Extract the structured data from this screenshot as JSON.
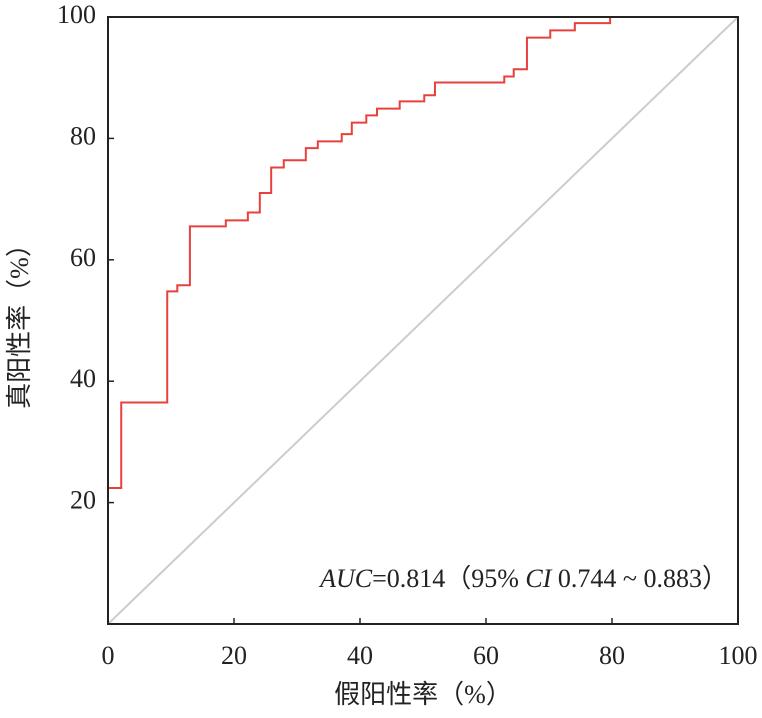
{
  "chart_data": {
    "type": "line",
    "xlabel": "假阳性率（%）",
    "ylabel": "真阳性率（%）",
    "annotation": [
      "AUC",
      "=0.814（95% ",
      "CI",
      " 0.744 ~ 0.883）"
    ],
    "x": [
      0,
      0,
      2.1,
      2.1,
      9.4,
      9.4,
      11,
      11,
      13,
      13,
      18.7,
      18.7,
      22.2,
      22.2,
      24.1,
      24.1,
      25.9,
      25.9,
      27.9,
      27.9,
      31.4,
      31.4,
      33.3,
      33.3,
      37.1,
      37.1,
      38.7,
      38.7,
      41,
      41,
      42.7,
      42.7,
      46.3,
      46.3,
      50.2,
      50.2,
      51.9,
      51.9,
      62.9,
      62.9,
      64.4,
      64.4,
      66.5,
      66.5,
      70.2,
      70.2,
      74.1,
      74.1,
      79.7,
      79.7,
      100
    ],
    "series": [
      {
        "color": "#e8413c",
        "values": [
          0,
          22.4,
          22.4,
          36.5,
          36.5,
          54.8,
          54.8,
          55.8,
          55.8,
          65.5,
          65.5,
          66.5,
          66.5,
          67.8,
          67.8,
          71,
          71,
          75.2,
          75.2,
          76.4,
          76.4,
          78.4,
          78.4,
          79.5,
          79.5,
          80.7,
          80.7,
          82.6,
          82.6,
          83.8,
          83.8,
          84.9,
          84.9,
          86.1,
          86.1,
          87.1,
          87.1,
          89.2,
          89.2,
          90.2,
          90.2,
          91.4,
          91.4,
          96.6,
          96.6,
          97.8,
          97.8,
          99,
          99,
          100,
          100
        ]
      }
    ],
    "xlim": [
      0,
      100
    ],
    "ylim": [
      0,
      100
    ],
    "xticks": [
      0,
      20,
      40,
      60,
      80,
      100
    ],
    "yticks": [
      20,
      40,
      60,
      80,
      100
    ],
    "reference_color": "#cccccc"
  }
}
